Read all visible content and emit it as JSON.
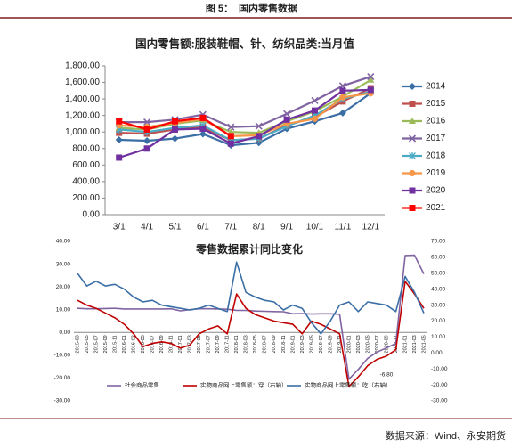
{
  "header": {
    "figure": "图 5：",
    "title": "国内零售数据"
  },
  "source": "数据来源：Wind、永安期货",
  "chart_data": [
    {
      "type": "line",
      "title": "国内零售额:服装鞋帽、针、纺织品类:当月值",
      "categories": [
        "3/1",
        "4/1",
        "5/1",
        "6/1",
        "7/1",
        "8/1",
        "9/1",
        "10/1",
        "11/1",
        "12/1"
      ],
      "ylim": [
        0,
        1800
      ],
      "yticks": [
        {
          "value": 0,
          "label": "0.00"
        },
        {
          "value": 200,
          "label": "200.00"
        },
        {
          "value": 400,
          "label": "400.00"
        },
        {
          "value": 600,
          "label": "600.00"
        },
        {
          "value": 800,
          "label": "800.00"
        },
        {
          "value": 1000,
          "label": "1,000.00"
        },
        {
          "value": 1200,
          "label": "1,200.00"
        },
        {
          "value": 1400,
          "label": "1,400.00"
        },
        {
          "value": 1600,
          "label": "1,600.00"
        },
        {
          "value": 1800,
          "label": "1,800.00"
        }
      ],
      "legend": "right",
      "series": [
        {
          "name": "2014",
          "color": "#3a6ea5",
          "marker": "diamond",
          "values": [
            905,
            895,
            920,
            975,
            840,
            870,
            1040,
            1130,
            1230,
            1470
          ]
        },
        {
          "name": "2015",
          "color": "#c0504d",
          "marker": "square",
          "values": [
            990,
            980,
            1030,
            1060,
            900,
            920,
            1080,
            1180,
            1370,
            1530
          ]
        },
        {
          "name": "2016",
          "color": "#9bbb59",
          "marker": "triangle",
          "values": [
            1050,
            1030,
            1100,
            1140,
            1000,
            990,
            1130,
            1250,
            1430,
            1630
          ]
        },
        {
          "name": "2017",
          "color": "#8064a2",
          "marker": "x",
          "values": [
            1120,
            1120,
            1150,
            1210,
            1060,
            1070,
            1220,
            1380,
            1560,
            1670
          ]
        },
        {
          "name": "2018",
          "color": "#4bacc6",
          "marker": "star",
          "values": [
            1030,
            1000,
            1050,
            1080,
            900,
            920,
            1070,
            1200,
            1400,
            1490
          ]
        },
        {
          "name": "2019",
          "color": "#f79646",
          "marker": "circle",
          "values": [
            1080,
            1060,
            1110,
            1160,
            950,
            960,
            1100,
            1160,
            1420,
            1470
          ]
        },
        {
          "name": "2020",
          "color": "#7030a0",
          "marker": "square",
          "values": [
            690,
            800,
            1030,
            1040,
            860,
            950,
            1150,
            1260,
            1500,
            1510
          ]
        },
        {
          "name": "2021",
          "color": "#ff0000",
          "marker": "square",
          "values": [
            1130,
            1030,
            1130,
            1170,
            950,
            null,
            null,
            null,
            null,
            null
          ]
        }
      ]
    },
    {
      "type": "line",
      "title": "零售数据累计同比变化",
      "categories": [
        "2015-03",
        "2015-05",
        "2015-07",
        "2015-09",
        "2015-11",
        "2016-01",
        "2016-03",
        "2016-05",
        "2016-07",
        "2016-09",
        "2016-11",
        "2017-01",
        "2017-03",
        "2017-05",
        "2017-07",
        "2017-09",
        "2017-11",
        "2018-01",
        "2018-03",
        "2018-05",
        "2018-07",
        "2018-09",
        "2018-11",
        "2019-01",
        "2019-03",
        "2019-05",
        "2019-07",
        "2019-09",
        "2019-11",
        "2020-01",
        "2020-03",
        "2020-05",
        "2020-07",
        "2020-09",
        "2020-11",
        "2021-01",
        "2021-03",
        "2021-05"
      ],
      "ylim": [
        -30,
        40
      ],
      "yticks": [
        {
          "value": -30,
          "label": "-30.00"
        },
        {
          "value": -20,
          "label": "-20.00"
        },
        {
          "value": -10,
          "label": "-10.00"
        },
        {
          "value": 0,
          "label": "0.00"
        },
        {
          "value": 10,
          "label": "10.00"
        },
        {
          "value": 20,
          "label": "20.00"
        },
        {
          "value": 30,
          "label": "30.00"
        },
        {
          "value": 40,
          "label": "40.00"
        }
      ],
      "y2lim": [
        -30,
        70
      ],
      "y2ticks": [
        {
          "value": -30,
          "label": "-30.00"
        },
        {
          "value": -20,
          "label": "-20.00"
        },
        {
          "value": -10,
          "label": "-10.00"
        },
        {
          "value": 0,
          "label": "0.00"
        },
        {
          "value": 10,
          "label": "10.00"
        },
        {
          "value": 20,
          "label": "20.00"
        },
        {
          "value": 30,
          "label": "30.00"
        },
        {
          "value": 40,
          "label": "40.00"
        },
        {
          "value": 50,
          "label": "50.00"
        },
        {
          "value": 60,
          "label": "60.00"
        },
        {
          "value": 70,
          "label": "70.00"
        }
      ],
      "legend": "bottom",
      "series": [
        {
          "name": "社会商品零售",
          "color": "#8064a2",
          "values": [
            10.6,
            10.4,
            10.4,
            10.5,
            10.6,
            10.3,
            10.3,
            10.3,
            10.3,
            10.3,
            10.4,
            9.5,
            10.0,
            10.4,
            10.4,
            10.3,
            10.2,
            9.7,
            9.7,
            9.4,
            9.3,
            9.2,
            9.1,
            8.2,
            8.3,
            8.1,
            8.2,
            8.2,
            8.0,
            -20.5,
            -16.2,
            -11.4,
            -8.6,
            -6.8,
            -4.8,
            33.8,
            33.9,
            25.7
          ],
          "value_labels": [
            null,
            null,
            null,
            null,
            null,
            null,
            null,
            null,
            null,
            null,
            null,
            null,
            null,
            null,
            null,
            null,
            null,
            null,
            null,
            null,
            null,
            null,
            null,
            null,
            null,
            null,
            null,
            null,
            null,
            null,
            null,
            null,
            null,
            "-6.80",
            null,
            null,
            null,
            null
          ]
        },
        {
          "name": "实物商品网上零售额：穿（右轴）",
          "color": "#c00000",
          "axis": "y2",
          "values": [
            33,
            30,
            28,
            25,
            22,
            18,
            12,
            4,
            6,
            7,
            6,
            3,
            5,
            12,
            15,
            17,
            12,
            37,
            28,
            24,
            22,
            20,
            19,
            18,
            12,
            20,
            18,
            15,
            12,
            -21,
            -15,
            -8,
            -4,
            -2,
            2,
            45,
            37,
            28
          ]
        },
        {
          "name": "实物商品网上零售额：吃（右轴）",
          "color": "#3a6ea5",
          "axis": "y2",
          "values": [
            50,
            42,
            45,
            42,
            43,
            40,
            35,
            32,
            33,
            30,
            29,
            28,
            27,
            28,
            30,
            28,
            26,
            57,
            38,
            35,
            33,
            32,
            27,
            30,
            28,
            19,
            12,
            20,
            30,
            32,
            26,
            32,
            31,
            30,
            26,
            48,
            38,
            25
          ]
        }
      ]
    }
  ]
}
